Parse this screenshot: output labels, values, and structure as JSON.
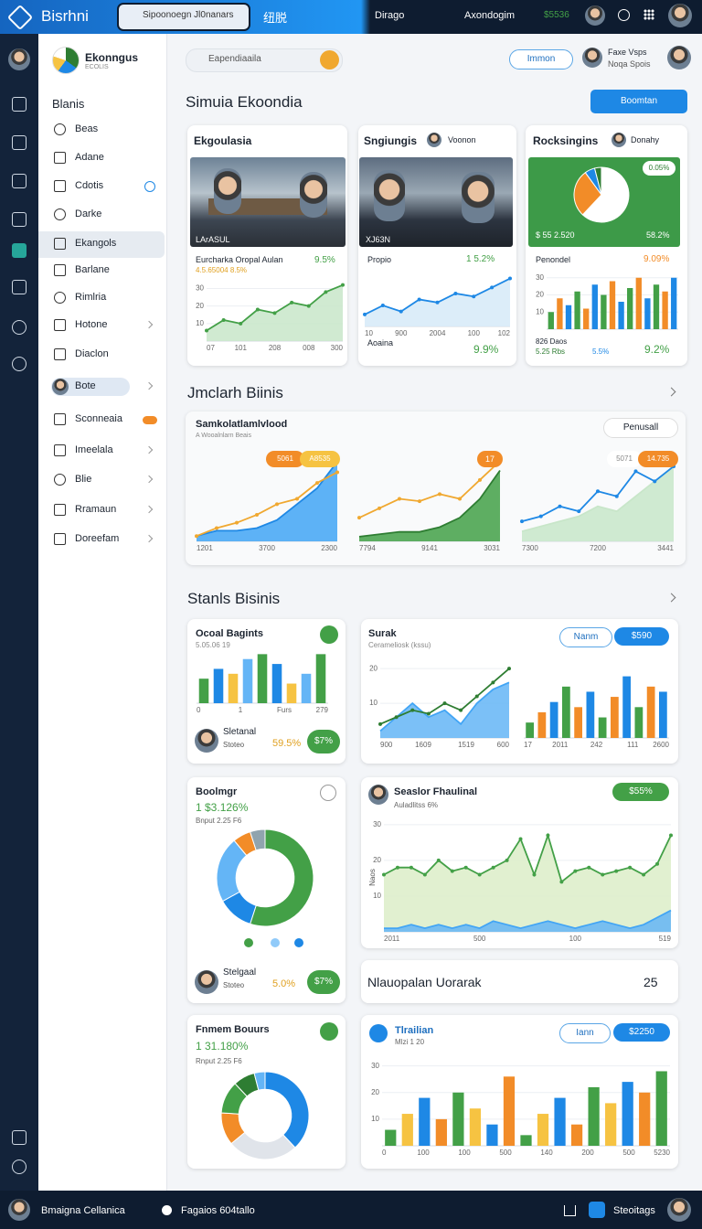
{
  "top_bar": {
    "brand": "Bisrhni",
    "search": "Sipoonoegn Jl0nanars",
    "tab": "纽脱",
    "menu1": "Dirago",
    "menu2": "Axondogim",
    "balance": "$5536"
  },
  "sidebar": {
    "brand": "Ekonngus",
    "brand_sub": "ECOLIS",
    "section": "Blanis",
    "items": [
      "Beas",
      "Adane",
      "Cdotis",
      "Darke",
      "Ekangols",
      "Barlane",
      "Rimlria",
      "Hotone",
      "Diaclon",
      "Bote",
      "Sconneaia",
      "Imeelala",
      "Blie",
      "Rramaun",
      "Doreefam"
    ]
  },
  "header": {
    "search": "Eapendiaaila",
    "button": "Immon",
    "user_name": "Faxe Vsps",
    "user_sub": "Noqa Spois",
    "title": "Simuia Ekoondia",
    "action": "Boomtan"
  },
  "cards": [
    {
      "title": "Ekgoulasia",
      "photo_caption": "LArASUL",
      "caption": "Eurcharka Oropal Aulan",
      "stat": "9.5%",
      "sub": "4.5.65004 8.5%",
      "chart": {
        "type": "xy",
        "ylim": [
          0,
          36
        ],
        "yticks": [
          10,
          20,
          30
        ],
        "xlabels": [
          "07",
          "101",
          "208",
          "008",
          "300"
        ],
        "series": [
          {
            "type": "area",
            "color": "#43a047",
            "fill": "#c8e6c9",
            "markers": true,
            "values": [
              6,
              12,
              10,
              18,
              16,
              22,
              20,
              28,
              32
            ]
          }
        ]
      }
    },
    {
      "title": "Sngiungis",
      "tag": "Voonon",
      "photo_caption": "XJ63N",
      "caption": "Propio",
      "stat": "1 5.2%",
      "foot": "Aoaina",
      "foot_stat": "9.9%",
      "chart": {
        "type": "xy",
        "ylim": [
          0,
          36
        ],
        "xlabels": [
          "10",
          "900",
          "2004",
          "100",
          "102"
        ],
        "series": [
          {
            "type": "area",
            "color": "#1e88e5",
            "fill": "#d6eaf8",
            "markers": true,
            "values": [
              8,
              14,
              10,
              18,
              16,
              22,
              20,
              26,
              32
            ]
          }
        ]
      }
    },
    {
      "title": "Rocksingins",
      "tag": "Donahy",
      "badge": "0.05%",
      "left": "$ 55 2.520",
      "right": "58.2%",
      "caption": "Penondel",
      "stat": "9.09%",
      "foot1": "826 Daos",
      "foot2": "5.25 Rbs",
      "foot3": "5.5%",
      "foot_stat": "9.2%",
      "pie": {
        "type": "pie",
        "values": [
          62,
          28,
          6,
          4
        ],
        "colors": [
          "#ffffff",
          "#f28c28",
          "#1e88e5",
          "#2e7d32"
        ]
      },
      "chart": {
        "type": "xy",
        "ylim": [
          0,
          32
        ],
        "yticks": [
          10,
          20,
          30
        ],
        "series": [
          {
            "type": "bar",
            "colors": [
              "#43a047",
              "#f28c28",
              "#1e88e5"
            ],
            "values": [
              10,
              18,
              14,
              22,
              12,
              26,
              20,
              28,
              16,
              24,
              30,
              18,
              26,
              22,
              30
            ]
          }
        ]
      }
    }
  ],
  "section1": "Jmclarh Biinis",
  "wide": {
    "title": "Samkolatlamlvlood",
    "sub": "A Wooalnlarn Beais",
    "button": "Penusall",
    "badges": [
      "5061",
      "A8535",
      "17",
      "5071",
      "14.735"
    ],
    "charts": [
      {
        "type": "xy",
        "ylim": [
          0,
          32
        ],
        "xlabels": [
          "1201",
          "3700",
          "2300"
        ],
        "series": [
          {
            "type": "area",
            "color": "#1e88e5",
            "fill": "#42a5f5",
            "values": [
              2,
              4,
              4,
              5,
              8,
              14,
              20,
              30
            ]
          },
          {
            "type": "line",
            "color": "#f0a830",
            "markers": true,
            "values": [
              2,
              5,
              7,
              10,
              14,
              16,
              22,
              26
            ]
          }
        ]
      },
      {
        "type": "xy",
        "ylim": [
          0,
          36
        ],
        "xlabels": [
          "7794",
          "9141",
          "3031"
        ],
        "series": [
          {
            "type": "area",
            "color": "#2e7d32",
            "fill": "#43a047",
            "values": [
              2,
              3,
              4,
              4,
              6,
              10,
              18,
              30
            ]
          },
          {
            "type": "line",
            "color": "#f0a830",
            "markers": true,
            "values": [
              10,
              14,
              18,
              17,
              20,
              18,
              26,
              34
            ]
          }
        ]
      },
      {
        "type": "xy",
        "ylim": [
          0,
          34
        ],
        "xlabels": [
          "7300",
          "7200",
          "3441"
        ],
        "series": [
          {
            "type": "area",
            "color": "#c8e6c9",
            "fill": "#c8e6c9",
            "values": [
              4,
              6,
              8,
              10,
              14,
              12,
              18,
              24,
              30
            ]
          },
          {
            "type": "line",
            "color": "#1e88e5",
            "markers": true,
            "values": [
              8,
              10,
              14,
              12,
              20,
              18,
              28,
              24,
              30
            ]
          }
        ]
      }
    ]
  },
  "section2": "Stanls Bisinis",
  "ocoal": {
    "title": "Ocoal Bagints",
    "sub": "5.05.06 19",
    "person": "Sletanal",
    "person_sub": "Stoteo",
    "stat": "59.5%",
    "badge": "$7%",
    "chart": {
      "type": "xy",
      "ylim": [
        0,
        22
      ],
      "xlabels": [
        "0",
        "1",
        "Furs",
        "279"
      ],
      "series": [
        {
          "type": "bar",
          "colors": [
            "#43a047",
            "#1e88e5",
            "#f6c342",
            "#64b5f6"
          ],
          "values": [
            10,
            14,
            12,
            18,
            20,
            16,
            8,
            12,
            20
          ]
        }
      ]
    }
  },
  "surak": {
    "title": "Surak",
    "sub": "Cerameliosk (kssu)",
    "button1": "Nanm",
    "button2": "$590",
    "chart": {
      "type": "xy",
      "ylim": [
        0,
        24
      ],
      "yticks": [
        10,
        20
      ],
      "xlabels": [
        "900",
        "1609",
        "1519",
        "600"
      ],
      "series": [
        {
          "type": "area",
          "color": "#42a5f5",
          "fill": "#64b5f6",
          "values": [
            2,
            6,
            10,
            6,
            8,
            4,
            10,
            14,
            16
          ]
        },
        {
          "type": "line",
          "color": "#2e7d32",
          "markers": true,
          "values": [
            4,
            6,
            8,
            7,
            10,
            8,
            12,
            16,
            20
          ]
        }
      ]
    },
    "chart2": {
      "type": "xy",
      "ylim": [
        0,
        26
      ],
      "xlabels": [
        "17",
        "2011",
        "242",
        "111",
        "2600"
      ],
      "series": [
        {
          "type": "bar",
          "colors": [
            "#43a047",
            "#f28c28",
            "#1e88e5"
          ],
          "values": [
            6,
            10,
            14,
            20,
            12,
            18,
            8,
            16,
            24,
            12,
            20,
            18
          ]
        }
      ]
    }
  },
  "boolmgr": {
    "title": "Boolmgr",
    "stat": "1 $3.126%",
    "sub": "Bnput 2.25 F6",
    "person": "Stelgaal",
    "person_sub": "Stoteo",
    "stat2": "5.0%",
    "badge": "$7%",
    "chart": {
      "type": "donut",
      "values": [
        55,
        12,
        22,
        6,
        5
      ],
      "colors": [
        "#43a047",
        "#1e88e5",
        "#64b5f6",
        "#f28c28",
        "#90a4ae"
      ]
    }
  },
  "seaslor": {
    "title": "Seaslor Fhaulinal",
    "sub": "Auladlitss 6%",
    "badge": "$55%",
    "ylabel": "Naos",
    "chart": {
      "type": "xy",
      "ylim": [
        0,
        32
      ],
      "yticks": [
        10,
        20,
        30
      ],
      "xlabels": [
        "2011",
        "500",
        "100",
        "519"
      ],
      "series": [
        {
          "type": "area",
          "color": "#43a047",
          "fill": "#dcedc8",
          "markers": true,
          "values": [
            16,
            18,
            18,
            16,
            20,
            17,
            18,
            16,
            18,
            20,
            26,
            16,
            27,
            14,
            17,
            18,
            16,
            17,
            18,
            16,
            19,
            27
          ]
        },
        {
          "type": "area",
          "color": "#42a5f5",
          "fill": "#64b5f6",
          "values": [
            1,
            1,
            2,
            1,
            2,
            1,
            2,
            1,
            3,
            2,
            1,
            2,
            3,
            2,
            1,
            2,
            3,
            2,
            1,
            2,
            4,
            6
          ]
        }
      ]
    }
  },
  "nlauopalan": {
    "label": "Nlauopalan Uorarak",
    "value": "25"
  },
  "fnmem": {
    "title": "Fnmem Bouurs",
    "stat": "1 31.180%",
    "sub": "Rnput 2.25 F6",
    "chart": {
      "type": "donut",
      "values": [
        38,
        26,
        12,
        12,
        8,
        4
      ],
      "colors": [
        "#1e88e5",
        "#e0e4ea",
        "#f28c28",
        "#43a047",
        "#2e7d32",
        "#64b5f6"
      ]
    }
  },
  "tlrailian": {
    "title": "Tlrailian",
    "sub": "Mlzi 1 20",
    "button1": "Iann",
    "button2": "$2250",
    "chart": {
      "type": "xy",
      "ylim": [
        0,
        34
      ],
      "yticks": [
        10,
        20,
        30
      ],
      "xlabels": [
        "0",
        "100",
        "100",
        "500",
        "140",
        "200",
        "500",
        "5230"
      ],
      "series": [
        {
          "type": "bar",
          "colors": [
            "#43a047",
            "#f6c342",
            "#1e88e5",
            "#f28c28"
          ],
          "values": [
            6,
            12,
            18,
            10,
            20,
            14,
            8,
            26,
            4,
            12,
            18,
            8,
            22,
            16,
            24,
            20,
            28
          ]
        }
      ]
    }
  },
  "bottom_bar": {
    "left": "Bmaigna Cellanica",
    "mid": "Fagaios 604tallo",
    "right": "Steoitags"
  }
}
